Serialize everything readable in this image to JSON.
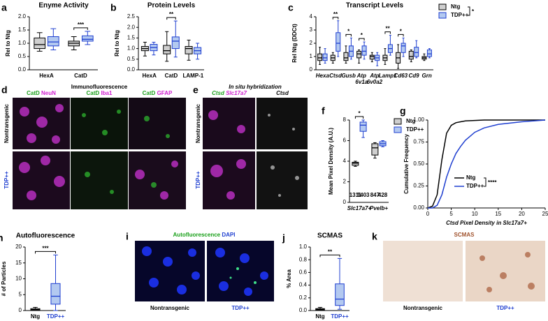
{
  "chart_data": [
    {
      "type": "box",
      "panel": "a",
      "title": "Enyme Activity",
      "ylabel": "Rel to Ntg",
      "categories": [
        "HexA",
        "CatD"
      ],
      "series": [
        {
          "color": "#000000",
          "fill": "#cfcfcf",
          "values": [
            {
              "min": 0.7,
              "q1": 0.8,
              "median": 0.95,
              "q3": 1.2,
              "max": 1.4
            },
            {
              "min": 0.75,
              "q1": 0.9,
              "median": 1.0,
              "q3": 1.08,
              "max": 1.25
            }
          ]
        },
        {
          "color": "#1f3fd0",
          "fill": "#b3c9f0",
          "values": [
            {
              "min": 0.75,
              "q1": 0.9,
              "median": 1.05,
              "q3": 1.25,
              "max": 1.55
            },
            {
              "min": 0.95,
              "q1": 1.08,
              "median": 1.15,
              "q3": 1.28,
              "max": 1.45
            }
          ]
        }
      ],
      "significance": [
        null,
        "***"
      ],
      "ylim": [
        0,
        2
      ],
      "yticks": [
        {
          "value": 0,
          "label": "0.0"
        },
        0.5,
        {
          "value": 1,
          "label": "1.0"
        },
        1.5,
        {
          "value": 2,
          "label": "2.0"
        }
      ]
    },
    {
      "type": "box",
      "panel": "b",
      "title": "Protein Levels",
      "ylabel": "Rel to Ntg",
      "categories": [
        "HexA",
        "CatD",
        "LAMP-1"
      ],
      "series": [
        {
          "color": "#000000",
          "fill": "#cfcfcf",
          "values": [
            {
              "min": 0.65,
              "q1": 0.9,
              "median": 1.0,
              "q3": 1.1,
              "max": 1.3
            },
            {
              "min": 0.4,
              "q1": 0.75,
              "median": 0.9,
              "q3": 1.15,
              "max": 1.8
            },
            {
              "min": 0.45,
              "q1": 0.75,
              "median": 1.0,
              "q3": 1.1,
              "max": 1.4
            }
          ]
        },
        {
          "color": "#1f3fd0",
          "fill": "#b3c9f0",
          "values": [
            {
              "min": 0.7,
              "q1": 0.9,
              "median": 1.05,
              "q3": 1.2,
              "max": 1.3
            },
            {
              "min": 0.6,
              "q1": 1.0,
              "median": 1.35,
              "q3": 1.55,
              "max": 2.3
            },
            {
              "min": 0.5,
              "q1": 0.75,
              "median": 0.9,
              "q3": 1.05,
              "max": 1.25
            }
          ]
        }
      ],
      "significance": [
        null,
        "**",
        null
      ],
      "ylim": [
        0,
        2.5
      ],
      "yticks": [
        {
          "value": 0,
          "label": "0.0"
        },
        0.5,
        {
          "value": 1,
          "label": "1.0"
        },
        1.5,
        {
          "value": 2,
          "label": "2.0"
        },
        2.5
      ]
    },
    {
      "type": "box",
      "panel": "c",
      "title": "Transcript Levels",
      "ylabel": "Rel Ntg (DDCt)",
      "italic_categories": true,
      "categories": [
        "Hexa",
        "Ctsd",
        "Gusb",
        "Atp 6v1a",
        "Atp 6v0a2",
        "Lamp1",
        "Cd63",
        "Cd9",
        "Grn"
      ],
      "series": [
        {
          "name": "Ntg",
          "color": "#000000",
          "fill": "#cfcfcf",
          "values": [
            {
              "min": 0.4,
              "q1": 0.7,
              "median": 0.9,
              "q3": 1.2,
              "max": 1.7
            },
            {
              "min": 0.5,
              "q1": 0.7,
              "median": 0.9,
              "q3": 1.1,
              "max": 1.3
            },
            {
              "min": 0.5,
              "q1": 0.7,
              "median": 0.9,
              "q3": 1.3,
              "max": 1.8
            },
            {
              "min": 0.5,
              "q1": 0.9,
              "median": 1.2,
              "q3": 1.4,
              "max": 1.5
            },
            {
              "min": 0.6,
              "q1": 0.8,
              "median": 1.0,
              "q3": 1.1,
              "max": 1.3
            },
            {
              "min": 0.4,
              "q1": 0.7,
              "median": 0.9,
              "q3": 1.1,
              "max": 1.6
            },
            {
              "min": 0.1,
              "q1": 0.5,
              "median": 0.9,
              "q3": 1.3,
              "max": 1.9
            },
            {
              "min": 0.6,
              "q1": 0.8,
              "median": 1.0,
              "q3": 1.4,
              "max": 1.5
            },
            {
              "min": 0.7,
              "q1": 0.8,
              "median": 0.9,
              "q3": 1.0,
              "max": 1.2
            }
          ]
        },
        {
          "name": "TDP++",
          "color": "#1f3fd0",
          "fill": "#b3c9f0",
          "values": [
            {
              "min": 0.5,
              "q1": 0.7,
              "median": 0.9,
              "q3": 1.2,
              "max": 1.6
            },
            {
              "min": 1.0,
              "q1": 1.4,
              "median": 2.0,
              "q3": 2.8,
              "max": 3.7
            },
            {
              "min": 0.8,
              "q1": 1.0,
              "median": 1.4,
              "q3": 1.8,
              "max": 2.4
            },
            {
              "min": 0.8,
              "q1": 1.1,
              "median": 1.4,
              "q3": 1.8,
              "max": 2.1
            },
            {
              "min": 0.3,
              "q1": 0.7,
              "median": 0.9,
              "q3": 1.1,
              "max": 1.3
            },
            {
              "min": 1.1,
              "q1": 1.3,
              "median": 1.6,
              "q3": 1.9,
              "max": 2.6
            },
            {
              "min": 1.0,
              "q1": 1.3,
              "median": 1.8,
              "q3": 2.0,
              "max": 2.4
            },
            {
              "min": 0.9,
              "q1": 1.0,
              "median": 1.3,
              "q3": 1.7,
              "max": 2.2
            },
            {
              "min": 0.9,
              "q1": 1.0,
              "median": 1.2,
              "q3": 1.5,
              "max": 1.6
            }
          ]
        }
      ],
      "significance": [
        null,
        "**",
        "*",
        "*",
        null,
        "**",
        "*",
        null,
        null
      ],
      "legend": "outside-right",
      "legend_significance": "*",
      "ylim": [
        0,
        4
      ],
      "yticks": [
        0,
        1,
        2,
        3,
        4
      ]
    },
    {
      "type": "box",
      "panel": "f",
      "ylabel": "Mean Pixel Density (A.U.)",
      "italic_categories": true,
      "categories": [
        "Slc17a7+",
        "Pvelb+"
      ],
      "series": [
        {
          "name": "Ntg",
          "color": "#000000",
          "fill": "#cfcfcf",
          "n": [
            1311,
            847
          ],
          "values": [
            {
              "min": 3.5,
              "q1": 3.6,
              "median": 3.8,
              "q3": 3.9,
              "max": 4.0
            },
            {
              "min": 4.3,
              "q1": 4.6,
              "median": 5.3,
              "q3": 5.7,
              "max": 5.8
            }
          ]
        },
        {
          "name": "TDP++",
          "color": "#1f3fd0",
          "fill": "#b3c9f0",
          "n": [
            1403,
            428
          ],
          "values": [
            {
              "min": 6.3,
              "q1": 6.9,
              "median": 7.5,
              "q3": 7.8,
              "max": 8.0
            },
            {
              "min": 5.4,
              "q1": 5.5,
              "median": 5.7,
              "q3": 5.9,
              "max": 6.0
            }
          ]
        }
      ],
      "significance": [
        "*",
        null
      ],
      "legend": "outside-right",
      "ylim": [
        0,
        8
      ],
      "yticks": [
        0,
        2,
        4,
        6,
        8
      ]
    },
    {
      "type": "line",
      "panel": "g",
      "xlabel": "Ctsd Pixel Density in Slc17a7+",
      "ylabel": "Cumulative Frequency",
      "x": [
        0,
        1,
        2,
        3,
        4,
        5,
        6,
        7,
        8,
        10,
        12,
        15,
        20,
        25
      ],
      "series": [
        {
          "name": "Ntg",
          "color": "#000000",
          "values": [
            0,
            0.02,
            0.15,
            0.55,
            0.85,
            0.94,
            0.97,
            0.98,
            0.99,
            0.995,
            1,
            1,
            1,
            1
          ]
        },
        {
          "name": "TDP++",
          "color": "#1f3fd0",
          "values": [
            0,
            0,
            0.03,
            0.15,
            0.35,
            0.5,
            0.62,
            0.7,
            0.77,
            0.86,
            0.91,
            0.95,
            0.98,
            1
          ]
        }
      ],
      "legend": "center-right",
      "legend_significance": "****",
      "xlim": [
        0,
        25
      ],
      "xticks": [
        0,
        5,
        10,
        15,
        20,
        25
      ],
      "ylim": [
        0,
        1
      ],
      "yticks": [
        {
          "value": 0,
          "label": "0.00"
        },
        0.25,
        {
          "value": 0.5,
          "label": "0.50"
        },
        0.75,
        {
          "value": 1,
          "label": "1.00"
        }
      ]
    },
    {
      "type": "box",
      "panel": "h",
      "title": "Autofluorescence",
      "ylabel": "# of Particles",
      "categories": [
        "Ntg",
        "TDP++"
      ],
      "colors": [
        "#000000",
        "#1f3fd0"
      ],
      "fills": [
        "#cfcfcf",
        "#b3c9f0"
      ],
      "values": [
        {
          "min": 0,
          "q1": 0.1,
          "median": 0.3,
          "q3": 0.6,
          "max": 1.0
        },
        {
          "min": 0,
          "q1": 2,
          "median": 4.5,
          "q3": 8.5,
          "max": 17.5
        }
      ],
      "significance_pair": "***",
      "ylim": [
        0,
        20
      ],
      "yticks": [
        0,
        5,
        10,
        15,
        20
      ]
    },
    {
      "type": "box",
      "panel": "j",
      "title": "SCMAS",
      "ylabel": "% Area",
      "categories": [
        "Ntg",
        "TDP++"
      ],
      "colors": [
        "#000000",
        "#1f3fd0"
      ],
      "fills": [
        "#cfcfcf",
        "#b3c9f0"
      ],
      "values": [
        {
          "min": 0,
          "q1": 0.01,
          "median": 0.02,
          "q3": 0.03,
          "max": 0.05
        },
        {
          "min": 0.02,
          "q1": 0.08,
          "median": 0.18,
          "q3": 0.42,
          "max": 0.82
        }
      ],
      "significance_pair": "**",
      "ylim": [
        0,
        1
      ],
      "yticks": [
        {
          "value": 0,
          "label": "0.0"
        },
        0.2,
        0.4,
        0.6,
        0.8,
        {
          "value": 1,
          "label": "1.0"
        }
      ]
    }
  ],
  "images": {
    "d": {
      "panel": "d",
      "title": "Immunofluorescence",
      "columns": [
        [
          "CatD",
          "NeuN"
        ],
        [
          "CatD",
          "Iba1"
        ],
        [
          "CatD",
          "GFAP"
        ]
      ],
      "rows": [
        "Nontransgenic",
        "TDP++"
      ]
    },
    "e": {
      "panel": "e",
      "title": "In situ hybridization",
      "columns": [
        [
          "Ctsd",
          "Slc17a7"
        ],
        [
          "Ctsd"
        ]
      ],
      "rows": [
        "Nontransgenic",
        "TDP++"
      ]
    },
    "i": {
      "panel": "i",
      "header": [
        "Autofluorescence",
        "DAPI"
      ],
      "labels": [
        "Nontransgenic",
        "TDP++"
      ]
    },
    "k": {
      "panel": "k",
      "header": "SCMAS",
      "labels": [
        "Nontransgenic",
        "TDP++"
      ]
    }
  }
}
